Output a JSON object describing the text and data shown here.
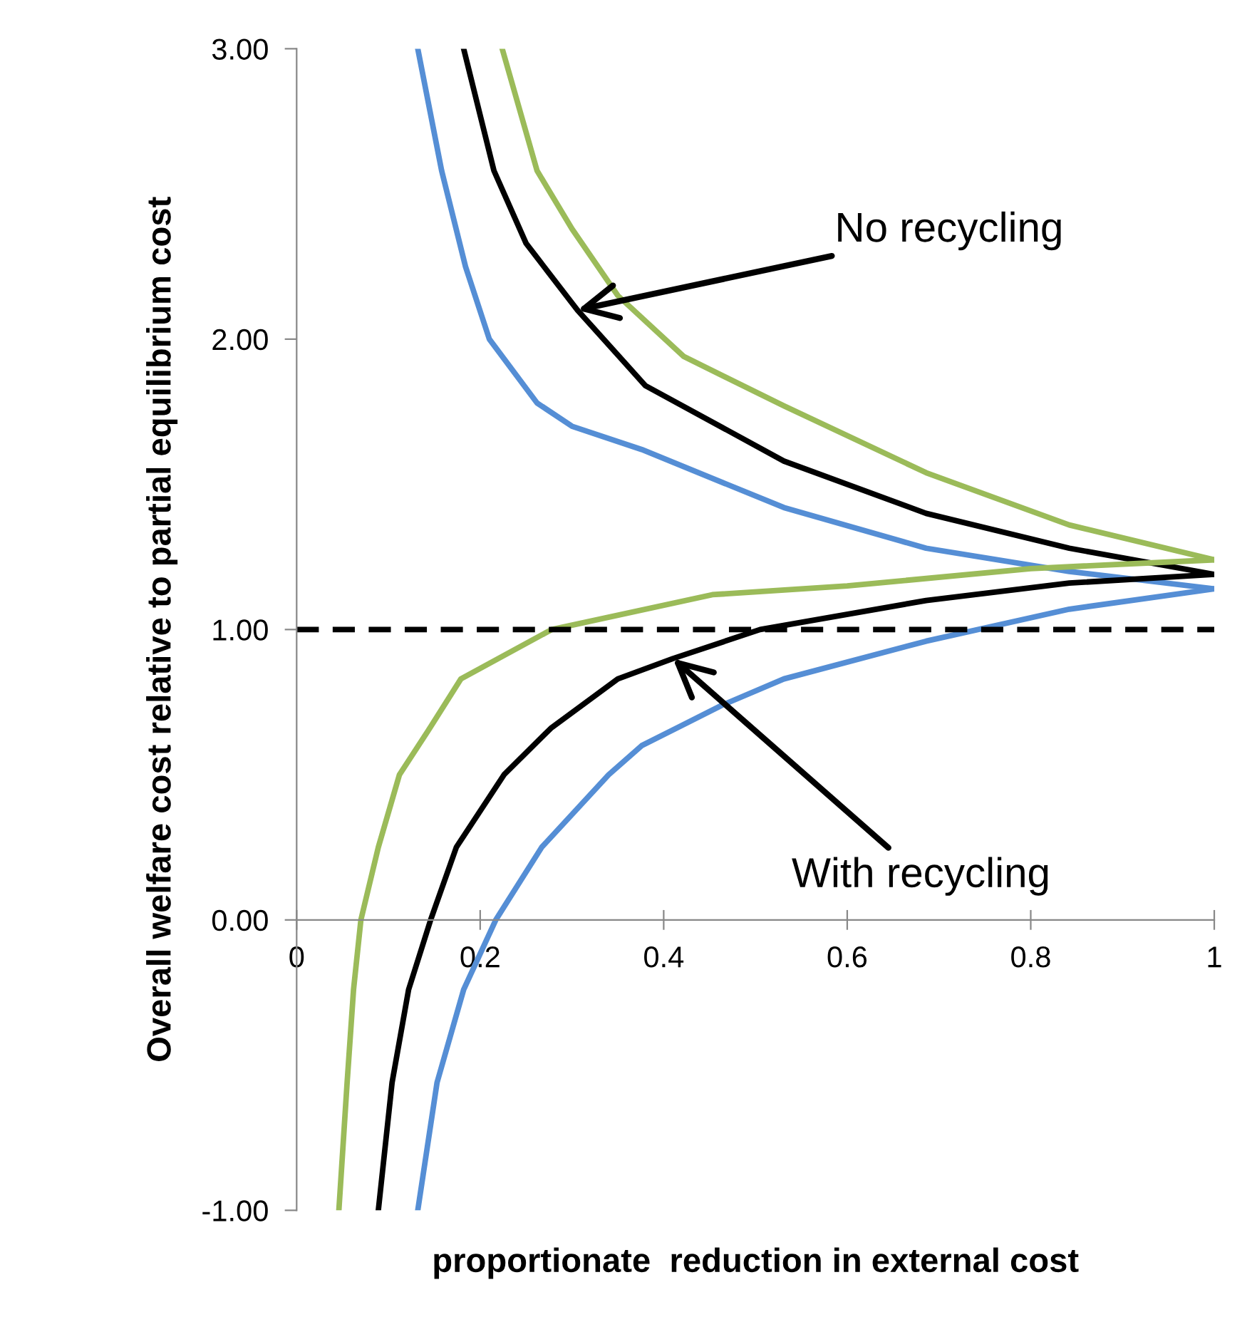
{
  "chart_data": {
    "type": "line",
    "xlabel": "proportionate  reduction in external cost",
    "ylabel": "Overall welfare cost relative to partial equilibrium cost",
    "xlim": [
      0,
      1
    ],
    "ylim": [
      -1,
      3
    ],
    "xticks": [
      0,
      0.2,
      0.4,
      0.6,
      0.8,
      1
    ],
    "yticks": [
      {
        "value": -1,
        "label": "-1.00"
      },
      {
        "value": 0,
        "label": "0.00"
      },
      {
        "value": 1,
        "label": "1.00"
      },
      {
        "value": 2,
        "label": "2.00"
      },
      {
        "value": 3,
        "label": "3.00"
      }
    ],
    "grid": false,
    "legend": false,
    "marker": "none",
    "line_style": "solid",
    "series": [
      {
        "color": "#9bbb59",
        "x": [
          0.224,
          0.262,
          0.3,
          0.35,
          0.422,
          0.531,
          0.686,
          0.842,
          1.0
        ],
        "values": [
          3.0,
          2.58,
          2.38,
          2.15,
          1.94,
          1.77,
          1.54,
          1.36,
          1.24
        ]
      },
      {
        "color": "#000000",
        "x": [
          0.182,
          0.215,
          0.25,
          0.306,
          0.38,
          0.531,
          0.686,
          0.842,
          1.0
        ],
        "values": [
          3.0,
          2.58,
          2.33,
          2.1,
          1.84,
          1.58,
          1.4,
          1.28,
          1.19
        ]
      },
      {
        "color": "#558ed5",
        "x": [
          0.132,
          0.158,
          0.184,
          0.21,
          0.262,
          0.3,
          0.376,
          0.531,
          0.686,
          0.842,
          1.0
        ],
        "values": [
          3.0,
          2.58,
          2.25,
          2.0,
          1.78,
          1.7,
          1.62,
          1.42,
          1.28,
          1.2,
          1.14
        ]
      },
      {
        "color": "#9bbb59",
        "x": [
          0.046,
          0.055,
          0.062,
          0.07,
          0.089,
          0.112,
          0.143,
          0.179,
          0.278,
          0.453,
          0.6,
          0.8,
          1.0
        ],
        "values": [
          -1.0,
          -0.56,
          -0.24,
          0.0,
          0.25,
          0.5,
          0.65,
          0.83,
          1.0,
          1.12,
          1.15,
          1.21,
          1.24
        ]
      },
      {
        "color": "#000000",
        "x": [
          0.089,
          0.104,
          0.122,
          0.146,
          0.174,
          0.226,
          0.277,
          0.35,
          0.41,
          0.505,
          0.686,
          0.842,
          1.0
        ],
        "values": [
          -1.0,
          -0.56,
          -0.24,
          0.0,
          0.25,
          0.5,
          0.66,
          0.83,
          0.9,
          1.0,
          1.1,
          1.16,
          1.19
        ]
      },
      {
        "color": "#558ed5",
        "x": [
          0.132,
          0.153,
          0.182,
          0.217,
          0.267,
          0.34,
          0.376,
          0.464,
          0.531,
          0.686,
          0.842,
          1.0
        ],
        "values": [
          -1.0,
          -0.56,
          -0.24,
          0.0,
          0.25,
          0.5,
          0.6,
          0.74,
          0.83,
          0.96,
          1.07,
          1.14
        ]
      }
    ],
    "ref_lines": [
      {
        "axis": "y",
        "value": 1,
        "color": "#000000",
        "line_style": "dashed"
      }
    ],
    "annotations": [
      {
        "text": "No recycling",
        "x": 0.306,
        "y": 2.1
      },
      {
        "text": "With recycling",
        "x": 0.41,
        "y": 0.9
      }
    ]
  }
}
